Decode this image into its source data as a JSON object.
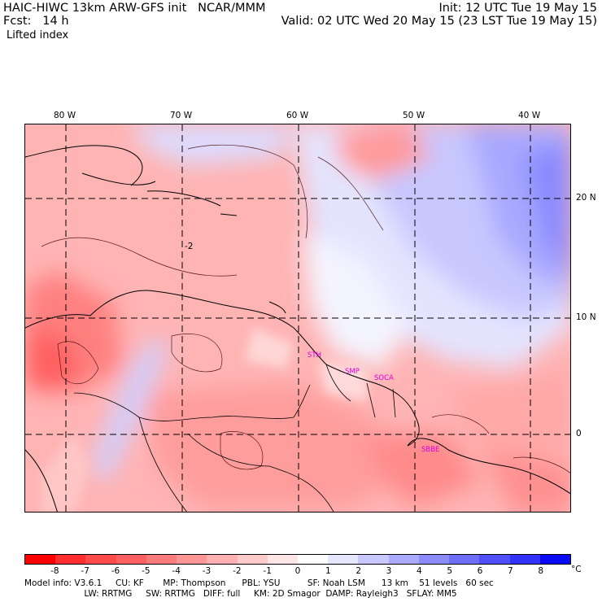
{
  "header": {
    "title": "HAIC-HIWC 13km ARW-GFS init   NCAR/MMM",
    "fcst": "Fcst:   14 h",
    "field": "Lifted index",
    "init": "Init: 12 UTC Tue 19 May 15",
    "valid": "Valid: 02 UTC Wed 20 May 15 (23 LST Tue 19 May 15)"
  },
  "map": {
    "lon_labels": [
      "80 W",
      "70 W",
      "60 W",
      "50 W",
      "40 W"
    ],
    "lat_labels": [
      "20 N",
      "10 N",
      "0"
    ],
    "contour_label": "-2",
    "stations": [
      {
        "name": "STH"
      },
      {
        "name": "SMP"
      },
      {
        "name": "SOCA"
      },
      {
        "name": "SBBE"
      }
    ]
  },
  "colorbar": {
    "labels": [
      "-8",
      "-7",
      "-6",
      "-5",
      "-4",
      "-3",
      "-2",
      "-1",
      "0",
      "1",
      "2",
      "3",
      "4",
      "5",
      "6",
      "7",
      "8"
    ],
    "unit": "°C",
    "colors": [
      "#ff0000",
      "#ff2e2e",
      "#ff4a4a",
      "#ff6060",
      "#ff7a7a",
      "#ff9696",
      "#ffb0b0",
      "#ffcaca",
      "#ffe6e6",
      "#ffffff",
      "#e6e6ff",
      "#c8c8ff",
      "#aaaaff",
      "#8c8cff",
      "#6e6efc",
      "#5050fa",
      "#3232f8",
      "#0a0af5"
    ]
  },
  "model_info": {
    "line1": "Model info: V3.6.1     CU: KF       MP: Thompson      PBL: YSU          SF: Noah LSM      13 km    51 levels   60 sec",
    "line2": "                      LW: RRTMG     SW: RRTMG   DIFF: full     KM: 2D Smagor  DAMP: Rayleigh3   SFLAY: MM5"
  }
}
